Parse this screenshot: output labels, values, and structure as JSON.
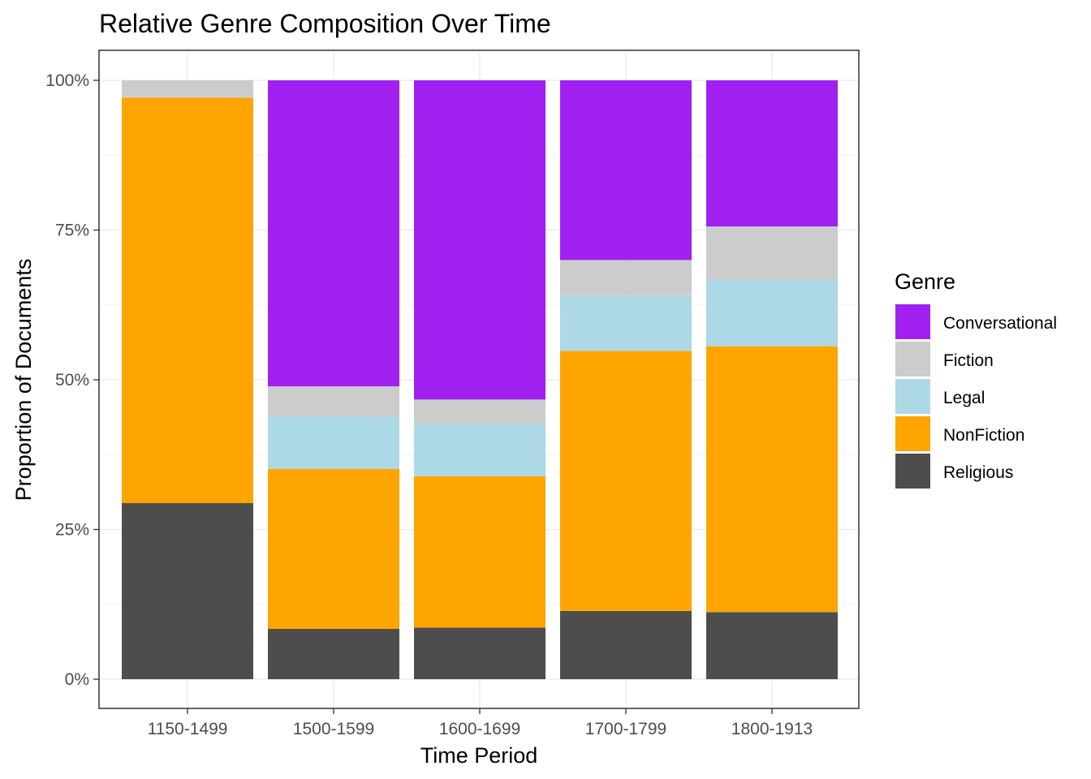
{
  "chart_data": {
    "type": "bar",
    "stacked": true,
    "normalized": true,
    "title": "Relative Genre Composition Over Time",
    "xlabel": "Time Period",
    "ylabel": "Proportion of Documents",
    "ylim": [
      0,
      1
    ],
    "yticks": [
      {
        "value": 0,
        "label": "0%"
      },
      {
        "value": 0.25,
        "label": "25%"
      },
      {
        "value": 0.5,
        "label": "50%"
      },
      {
        "value": 0.75,
        "label": "75%"
      },
      {
        "value": 1.0,
        "label": "100%"
      }
    ],
    "grid": true,
    "categories": [
      "1150-1499",
      "1500-1599",
      "1600-1699",
      "1700-1799",
      "1800-1913"
    ],
    "series": [
      {
        "name": "Religious",
        "color": "#4d4d4d",
        "values": [
          0.294,
          0.084,
          0.086,
          0.114,
          0.112
        ]
      },
      {
        "name": "NonFiction",
        "color": "#ffa500",
        "values": [
          0.677,
          0.267,
          0.253,
          0.434,
          0.444
        ]
      },
      {
        "name": "Legal",
        "color": "#add8e6",
        "values": [
          0.0,
          0.088,
          0.088,
          0.094,
          0.11
        ]
      },
      {
        "name": "Fiction",
        "color": "#cccccc",
        "values": [
          0.029,
          0.05,
          0.04,
          0.058,
          0.09
        ]
      },
      {
        "name": "Conversational",
        "color": "#a020f0",
        "values": [
          0.0,
          0.511,
          0.533,
          0.3,
          0.244
        ]
      }
    ],
    "legend": {
      "title": "Genre",
      "position": "right",
      "order": [
        "Conversational",
        "Fiction",
        "Legal",
        "NonFiction",
        "Religious"
      ]
    }
  }
}
